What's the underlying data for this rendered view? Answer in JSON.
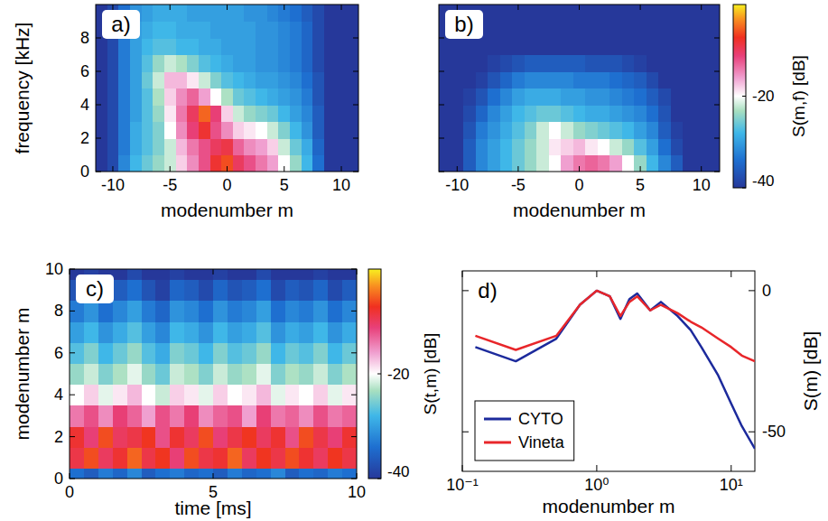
{
  "chart_data": [
    {
      "type": "heatmap",
      "panel": "a)",
      "xlabel": "modenumber m",
      "ylabel": "frequency [kHz]",
      "x": [
        -11,
        -10,
        -9,
        -8,
        -7,
        -6,
        -5,
        -4,
        -3,
        -2,
        -1,
        0,
        1,
        2,
        3,
        4,
        5,
        6,
        7,
        8,
        9,
        10,
        11
      ],
      "y": [
        0.5,
        1.5,
        2.5,
        3.5,
        4.5,
        5.5,
        6.5,
        7.5,
        8.5,
        9.5
      ],
      "z": [
        [
          -40,
          -38,
          -32,
          -28,
          -26,
          -24,
          -22,
          -18,
          -15,
          -12,
          -8,
          -6,
          -10,
          -12,
          -14,
          -16,
          -20,
          -24,
          -28,
          -34,
          -40,
          -40,
          -40
        ],
        [
          -40,
          -38,
          -33,
          -29,
          -27,
          -25,
          -22,
          -17,
          -14,
          -12,
          -10,
          -9,
          -13,
          -15,
          -16,
          -18,
          -22,
          -26,
          -29,
          -35,
          -40,
          -40,
          -40
        ],
        [
          -40,
          -38,
          -33,
          -29,
          -27,
          -25,
          -20,
          -15,
          -11,
          -8,
          -12,
          -15,
          -18,
          -19,
          -20,
          -22,
          -25,
          -28,
          -31,
          -36,
          -40,
          -40,
          -40
        ],
        [
          -40,
          -38,
          -33,
          -30,
          -27,
          -24,
          -19,
          -14,
          -10,
          -5,
          -11,
          -18,
          -22,
          -24,
          -25,
          -26,
          -28,
          -30,
          -32,
          -36,
          -40,
          -40,
          -40
        ],
        [
          -40,
          -38,
          -33,
          -30,
          -27,
          -23,
          -18,
          -15,
          -13,
          -16,
          -20,
          -23,
          -26,
          -27,
          -28,
          -29,
          -30,
          -31,
          -33,
          -37,
          -40,
          -40,
          -40
        ],
        [
          -40,
          -38,
          -33,
          -30,
          -26,
          -22,
          -17,
          -17,
          -19,
          -22,
          -25,
          -27,
          -28,
          -29,
          -30,
          -30,
          -31,
          -32,
          -34,
          -37,
          -40,
          -40,
          -40
        ],
        [
          -40,
          -38,
          -33,
          -30,
          -27,
          -24,
          -22,
          -23,
          -25,
          -27,
          -28,
          -29,
          -30,
          -30,
          -31,
          -31,
          -32,
          -33,
          -35,
          -38,
          -40,
          -40,
          -40
        ],
        [
          -40,
          -38,
          -33,
          -30,
          -28,
          -27,
          -27,
          -28,
          -28,
          -29,
          -29,
          -30,
          -30,
          -30,
          -31,
          -31,
          -32,
          -33,
          -35,
          -38,
          -40,
          -40,
          -40
        ],
        [
          -40,
          -38,
          -33,
          -30,
          -29,
          -28,
          -28,
          -29,
          -29,
          -29,
          -30,
          -30,
          -30,
          -30,
          -31,
          -31,
          -32,
          -33,
          -35,
          -38,
          -40,
          -40,
          -40
        ],
        [
          -40,
          -38,
          -34,
          -31,
          -30,
          -29,
          -29,
          -29,
          -30,
          -30,
          -30,
          -30,
          -30,
          -31,
          -31,
          -32,
          -33,
          -34,
          -36,
          -38,
          -40,
          -40,
          -40
        ]
      ],
      "xlim": [
        -11.5,
        11.5
      ],
      "ylim": [
        0,
        10
      ],
      "xticks": [
        -10,
        -5,
        0,
        5,
        10
      ],
      "yticks": [
        0,
        2,
        4,
        6,
        8
      ],
      "zlim": [
        -40,
        0
      ]
    },
    {
      "type": "heatmap",
      "panel": "b)",
      "xlabel": "modenumber m",
      "tick_labels": "x",
      "x": [
        -11,
        -10,
        -9,
        -8,
        -7,
        -6,
        -5,
        -4,
        -3,
        -2,
        -1,
        0,
        1,
        2,
        3,
        4,
        5,
        6,
        7,
        8,
        9,
        10,
        11
      ],
      "y": [
        0.5,
        1.5,
        2.5,
        3.5,
        4.5,
        5.5,
        6.5,
        7.5,
        8.5,
        9.5
      ],
      "z": [
        [
          -40,
          -40,
          -36,
          -32,
          -30,
          -28,
          -26,
          -24,
          -22,
          -20,
          -16,
          -14,
          -13,
          -14,
          -16,
          -20,
          -24,
          -28,
          -32,
          -36,
          -40,
          -40,
          -40
        ],
        [
          -40,
          -40,
          -36,
          -32,
          -30,
          -28,
          -26,
          -24,
          -22,
          -19,
          -18,
          -17,
          -19,
          -20,
          -22,
          -24,
          -27,
          -30,
          -34,
          -38,
          -40,
          -40,
          -40
        ],
        [
          -40,
          -40,
          -37,
          -33,
          -31,
          -29,
          -27,
          -25,
          -22,
          -20,
          -22,
          -24,
          -25,
          -26,
          -27,
          -28,
          -30,
          -32,
          -36,
          -39,
          -40,
          -40,
          -40
        ],
        [
          -40,
          -40,
          -38,
          -35,
          -32,
          -30,
          -28,
          -27,
          -26,
          -26,
          -27,
          -28,
          -29,
          -29,
          -30,
          -31,
          -32,
          -34,
          -37,
          -40,
          -40,
          -40,
          -40
        ],
        [
          -40,
          -40,
          -39,
          -37,
          -34,
          -32,
          -30,
          -29,
          -29,
          -29,
          -30,
          -30,
          -31,
          -31,
          -32,
          -33,
          -34,
          -36,
          -38,
          -40,
          -40,
          -40,
          -40
        ],
        [
          -40,
          -40,
          -40,
          -39,
          -37,
          -35,
          -33,
          -32,
          -32,
          -32,
          -32,
          -33,
          -33,
          -33,
          -34,
          -35,
          -36,
          -38,
          -40,
          -40,
          -40,
          -40,
          -40
        ],
        [
          -40,
          -40,
          -40,
          -40,
          -39,
          -38,
          -37,
          -36,
          -36,
          -36,
          -36,
          -36,
          -37,
          -37,
          -37,
          -38,
          -39,
          -40,
          -40,
          -40,
          -40,
          -40,
          -40
        ],
        [
          -40,
          -40,
          -40,
          -40,
          -40,
          -40,
          -40,
          -40,
          -40,
          -40,
          -40,
          -40,
          -40,
          -40,
          -40,
          -40,
          -40,
          -40,
          -40,
          -40,
          -40,
          -40,
          -40
        ],
        [
          -40,
          -40,
          -40,
          -40,
          -40,
          -40,
          -40,
          -40,
          -40,
          -40,
          -40,
          -40,
          -40,
          -40,
          -40,
          -40,
          -40,
          -40,
          -40,
          -40,
          -40,
          -40,
          -40
        ],
        [
          -40,
          -40,
          -40,
          -40,
          -40,
          -40,
          -40,
          -40,
          -40,
          -40,
          -40,
          -40,
          -40,
          -40,
          -40,
          -40,
          -40,
          -40,
          -40,
          -40,
          -40,
          -40,
          -40
        ]
      ],
      "xlim": [
        -11.5,
        11.5
      ],
      "ylim": [
        0,
        10
      ],
      "xticks": [
        -10,
        -5,
        0,
        5,
        10
      ],
      "yticks": [
        0,
        2,
        4,
        6,
        8
      ],
      "zlim": [
        -40,
        0
      ],
      "zticks": [
        -40,
        -20
      ],
      "zlabel": "S(m,f) [dB]"
    },
    {
      "type": "heatmap",
      "panel": "c)",
      "xlabel": "time [ms]",
      "ylabel": "modenumber m",
      "x": [
        0.25,
        0.75,
        1.25,
        1.75,
        2.25,
        2.75,
        3.25,
        3.75,
        4.25,
        4.75,
        5.25,
        5.75,
        6.25,
        6.75,
        7.25,
        7.75,
        8.25,
        8.75,
        9.25,
        9.75
      ],
      "y": [
        0,
        1,
        2,
        3,
        4,
        5,
        6,
        7,
        8,
        9,
        10
      ],
      "z": [
        [
          -34,
          -36,
          -33,
          -35,
          -32,
          -36,
          -34,
          -33,
          -35,
          -34,
          -36,
          -33,
          -35,
          -34,
          -32,
          -36,
          -34,
          -35,
          -33,
          -34
        ],
        [
          -9,
          -6,
          -10,
          -8,
          -5,
          -9,
          -7,
          -11,
          -6,
          -9,
          -8,
          -5,
          -10,
          -7,
          -9,
          -6,
          -8,
          -10,
          -7,
          -9
        ],
        [
          -8,
          -11,
          -6,
          -10,
          -9,
          -7,
          -12,
          -8,
          -10,
          -6,
          -11,
          -9,
          -7,
          -10,
          -8,
          -12,
          -6,
          -9,
          -11,
          -8
        ],
        [
          -14,
          -12,
          -15,
          -11,
          -13,
          -16,
          -12,
          -14,
          -11,
          -15,
          -13,
          -12,
          -16,
          -11,
          -14,
          -13,
          -15,
          -12,
          -14,
          -13
        ],
        [
          -20,
          -18,
          -21,
          -19,
          -17,
          -20,
          -22,
          -18,
          -19,
          -21,
          -18,
          -20,
          -19,
          -17,
          -21,
          -19,
          -20,
          -18,
          -21,
          -19
        ],
        [
          -24,
          -22,
          -25,
          -23,
          -21,
          -24,
          -26,
          -22,
          -23,
          -25,
          -22,
          -24,
          -23,
          -21,
          -25,
          -23,
          -24,
          -22,
          -25,
          -23
        ],
        [
          -27,
          -25,
          -28,
          -26,
          -24,
          -27,
          -29,
          -25,
          -26,
          -28,
          -25,
          -27,
          -26,
          -24,
          -28,
          -26,
          -27,
          -25,
          -28,
          -26
        ],
        [
          -30,
          -28,
          -31,
          -29,
          -27,
          -30,
          -32,
          -28,
          -29,
          -31,
          -28,
          -30,
          -29,
          -27,
          -31,
          -29,
          -30,
          -28,
          -31,
          -29
        ],
        [
          -33,
          -31,
          -34,
          -32,
          -30,
          -33,
          -35,
          -31,
          -32,
          -34,
          -31,
          -33,
          -32,
          -30,
          -34,
          -32,
          -33,
          -31,
          -34,
          -32
        ],
        [
          -37,
          -35,
          -38,
          -36,
          -34,
          -37,
          -39,
          -35,
          -36,
          -38,
          -35,
          -37,
          -36,
          -34,
          -38,
          -36,
          -37,
          -35,
          -38,
          -36
        ],
        [
          -40,
          -39,
          -40,
          -40,
          -38,
          -40,
          -40,
          -39,
          -40,
          -40,
          -39,
          -40,
          -40,
          -38,
          -40,
          -40,
          -40,
          -39,
          -40,
          -40
        ]
      ],
      "xlim": [
        0,
        10
      ],
      "ylim": [
        0,
        10
      ],
      "xticks": [
        0,
        5,
        10
      ],
      "yticks": [
        0,
        2,
        4,
        6,
        8,
        10
      ],
      "zlim": [
        -40,
        0
      ],
      "zticks": [
        -40,
        -20
      ],
      "zlabel": "S(t,m) [dB]"
    },
    {
      "type": "line",
      "panel": "d)",
      "xlabel": "modenumber m",
      "ylabel": "S(m) [dB]",
      "log": "x",
      "x": [
        0.125,
        0.25,
        0.5,
        0.75,
        1,
        1.25,
        1.5,
        1.75,
        2,
        2.5,
        3,
        4,
        5,
        6,
        8,
        10,
        12,
        15
      ],
      "series": [
        {
          "name": "CYTO",
          "color": "#1c2a9c",
          "values": [
            -20,
            -25,
            -17,
            -5,
            0,
            -2,
            -10,
            -3,
            -1,
            -7,
            -4,
            -9,
            -14,
            -20,
            -30,
            -40,
            -48,
            -56
          ]
        },
        {
          "name": "Vineta",
          "color": "#e8262a",
          "values": [
            -16,
            -21,
            -16,
            -5,
            0,
            -2,
            -9,
            -4,
            -2,
            -7,
            -5,
            -8,
            -11,
            -13,
            -17,
            -20,
            -23,
            -25
          ]
        }
      ],
      "xlim": [
        0.1,
        15
      ],
      "ylim": [
        -64,
        7
      ],
      "xticks": [
        {
          "value": 0.1,
          "label": "10⁻¹"
        },
        {
          "value": 1,
          "label": "10⁰"
        },
        {
          "value": 10,
          "label": "10¹"
        }
      ],
      "yticks": [
        -50,
        0
      ],
      "legend": "lower left"
    }
  ]
}
